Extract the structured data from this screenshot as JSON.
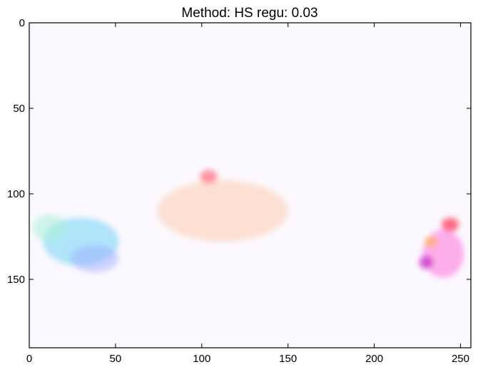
{
  "chart_data": {
    "type": "heatmap",
    "title": "Method: HS regu: 0.03",
    "xlabel": "",
    "ylabel": "",
    "xlim": [
      0,
      256
    ],
    "ylim": [
      190,
      0
    ],
    "y_inverted": true,
    "x_ticks": [
      0,
      50,
      100,
      150,
      200,
      250
    ],
    "y_ticks": [
      0,
      50,
      100,
      150
    ],
    "grid": false,
    "colormap": "optical-flow color wheel (mostly near-white)",
    "blobs": [
      {
        "x": 30,
        "y": 128,
        "rx": 22,
        "ry": 14,
        "color": "#7fd6f5",
        "opacity": 0.6
      },
      {
        "x": 12,
        "y": 120,
        "rx": 10,
        "ry": 8,
        "color": "#a8f0d8",
        "opacity": 0.55
      },
      {
        "x": 38,
        "y": 138,
        "rx": 14,
        "ry": 8,
        "color": "#9aa8ff",
        "opacity": 0.45
      },
      {
        "x": 112,
        "y": 110,
        "rx": 38,
        "ry": 18,
        "color": "#ffc8a8",
        "opacity": 0.5
      },
      {
        "x": 104,
        "y": 90,
        "rx": 5,
        "ry": 4,
        "color": "#ff6a7a",
        "opacity": 0.7
      },
      {
        "x": 240,
        "y": 135,
        "rx": 12,
        "ry": 14,
        "color": "#ff70d8",
        "opacity": 0.55
      },
      {
        "x": 244,
        "y": 118,
        "rx": 5,
        "ry": 4,
        "color": "#ff3b55",
        "opacity": 0.75
      },
      {
        "x": 230,
        "y": 140,
        "rx": 4,
        "ry": 4,
        "color": "#c000c0",
        "opacity": 0.6
      },
      {
        "x": 233,
        "y": 128,
        "rx": 4,
        "ry": 3,
        "color": "#ffb020",
        "opacity": 0.6
      }
    ]
  }
}
